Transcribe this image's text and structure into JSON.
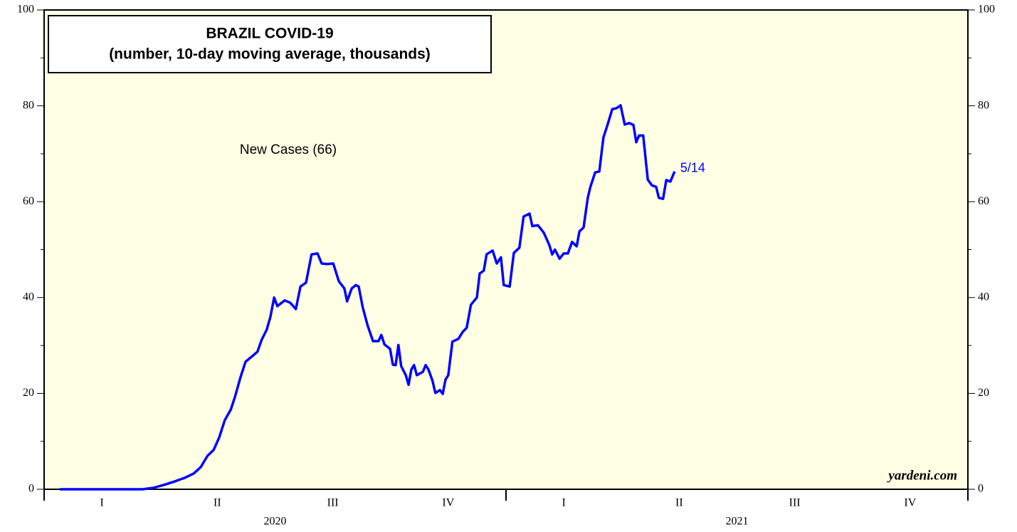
{
  "chart_data": {
    "type": "line",
    "title": "BRAZIL COVID-19",
    "subtitle": "(number, 10-day moving average, thousands)",
    "end_label": "5/14",
    "source": "yardeni.com",
    "background": "#ffffe4",
    "xlim": [
      2020,
      2022
    ],
    "xticks": [
      {
        "value": 2020.125,
        "label": "I"
      },
      {
        "value": 2020.375,
        "label": "II"
      },
      {
        "value": 2020.625,
        "label": "III"
      },
      {
        "value": 2020.875,
        "label": "IV"
      },
      {
        "value": 2021.125,
        "label": "I"
      },
      {
        "value": 2021.375,
        "label": "II"
      },
      {
        "value": 2021.625,
        "label": "III"
      },
      {
        "value": 2021.875,
        "label": "IV"
      }
    ],
    "year_ticks": [
      2020,
      2021,
      2022
    ],
    "year_labels": [
      {
        "value": 2020.5,
        "label": "2020"
      },
      {
        "value": 2021.5,
        "label": "2021"
      }
    ],
    "ylim": [
      0,
      100
    ],
    "yticks": [
      0,
      20,
      40,
      60,
      80,
      100
    ],
    "yminor_ticks": [
      10,
      30,
      50,
      70,
      90
    ],
    "series": [
      {
        "name": "New Cases (66)",
        "color": "#0000ff",
        "x": [
          2020.034,
          2020.182,
          2020.213,
          2020.236,
          2020.259,
          2020.282,
          2020.305,
          2020.324,
          2020.339,
          2020.354,
          2020.367,
          2020.379,
          2020.391,
          2020.404,
          2020.413,
          2020.425,
          2020.436,
          2020.451,
          2020.462,
          2020.471,
          2020.482,
          2020.49,
          2020.498,
          2020.505,
          2020.521,
          2020.533,
          2020.545,
          2020.555,
          2020.567,
          2020.579,
          2020.592,
          2020.601,
          2020.613,
          2020.626,
          2020.638,
          2020.65,
          2020.656,
          2020.666,
          2020.675,
          2020.681,
          2020.69,
          2020.7,
          2020.712,
          2020.724,
          2020.73,
          2020.737,
          2020.749,
          2020.755,
          2020.761,
          2020.767,
          2020.773,
          2020.783,
          2020.789,
          2020.795,
          2020.801,
          2020.807,
          2020.82,
          2020.826,
          2020.832,
          2020.841,
          2020.847,
          2020.857,
          2020.863,
          2020.869,
          2020.875,
          2020.884,
          2020.897,
          2020.906,
          2020.915,
          2020.924,
          2020.937,
          2020.943,
          2020.952,
          2020.958,
          2020.971,
          2020.98,
          2020.989,
          2020.995,
          2021.008,
          2021.017,
          2021.029,
          2021.038,
          2021.051,
          2021.057,
          2021.069,
          2021.082,
          2021.094,
          2021.1,
          2021.106,
          2021.116,
          2021.125,
          2021.134,
          2021.143,
          2021.153,
          2021.159,
          2021.168,
          2021.177,
          2021.183,
          2021.193,
          2021.202,
          2021.211,
          2021.22,
          2021.23,
          2021.239,
          2021.248,
          2021.257,
          2021.267,
          2021.276,
          2021.282,
          2021.288,
          2021.297,
          2021.307,
          2021.316,
          2021.325,
          2021.331,
          2021.34,
          2021.347,
          2021.356,
          2021.365
        ],
        "values": [
          0,
          0,
          0,
          0.3,
          0.9,
          1.6,
          2.4,
          3.3,
          4.6,
          7,
          8.2,
          10.8,
          14.4,
          16.6,
          19.2,
          23.3,
          26.6,
          27.8,
          28.7,
          31.2,
          33.3,
          36,
          40,
          38.2,
          39.4,
          38.9,
          37.6,
          42.3,
          43.1,
          49,
          49.2,
          47.1,
          47,
          47.1,
          43.4,
          41.9,
          39.2,
          41.9,
          42.6,
          42.3,
          37.9,
          34.3,
          30.9,
          30.9,
          32.2,
          30.2,
          29.3,
          26,
          25.9,
          30.1,
          25.7,
          23.8,
          21.8,
          25,
          25.9,
          23.8,
          24.5,
          25.9,
          25,
          22.6,
          20.1,
          20.7,
          19.9,
          22.9,
          23.8,
          30.8,
          31.4,
          32.8,
          33.7,
          38.5,
          40,
          45,
          45.6,
          49,
          49.8,
          47.1,
          48.4,
          42.6,
          42.3,
          49.3,
          50.4,
          56.9,
          57.5,
          54.9,
          55.1,
          53.5,
          50.9,
          49,
          50,
          48.1,
          49.2,
          49.2,
          51.6,
          50.7,
          53.8,
          54.6,
          60.8,
          63.2,
          66.1,
          66.3,
          73.4,
          76.1,
          79.3,
          79.5,
          80.1,
          76.1,
          76.4,
          76,
          72.4,
          73.8,
          73.8,
          64.6,
          63.4,
          63.1,
          60.8,
          60.6,
          64.5,
          64.2,
          66.3
        ]
      }
    ]
  }
}
